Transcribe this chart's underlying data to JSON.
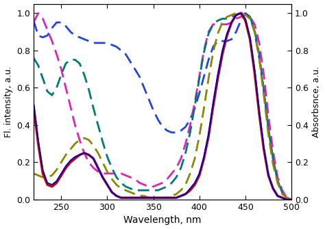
{
  "title": "",
  "xlabel": "Wavelength, nm",
  "ylabel_left": "Fl. intensity, a.u.",
  "ylabel_right": "Absorbsnce, a.u.",
  "xlim": [
    220,
    500
  ],
  "ylim": [
    0.0,
    1.05
  ],
  "background_color": "#ffffff",
  "xticks": [
    250,
    300,
    350,
    400,
    450,
    500
  ],
  "yticks": [
    0.0,
    0.2,
    0.4,
    0.6,
    0.8,
    1.0
  ],
  "curves": [
    {
      "name": "red_solid",
      "color": "#cc0000",
      "linewidth": 2.5,
      "linestyle": "solid",
      "x": [
        220,
        225,
        230,
        235,
        240,
        245,
        250,
        255,
        260,
        265,
        270,
        275,
        280,
        285,
        290,
        295,
        300,
        305,
        310,
        315,
        320,
        325,
        330,
        335,
        340,
        345,
        350,
        355,
        360,
        365,
        370,
        375,
        380,
        385,
        390,
        395,
        400,
        405,
        410,
        415,
        420,
        425,
        430,
        435,
        440,
        445,
        450,
        455,
        460,
        465,
        470,
        475,
        480,
        485,
        490,
        495,
        500
      ],
      "y": [
        0.5,
        0.3,
        0.14,
        0.08,
        0.07,
        0.09,
        0.13,
        0.17,
        0.2,
        0.22,
        0.24,
        0.25,
        0.24,
        0.22,
        0.17,
        0.12,
        0.08,
        0.04,
        0.02,
        0.01,
        0.01,
        0.01,
        0.01,
        0.01,
        0.01,
        0.01,
        0.01,
        0.01,
        0.01,
        0.01,
        0.01,
        0.01,
        0.02,
        0.03,
        0.05,
        0.08,
        0.13,
        0.22,
        0.34,
        0.5,
        0.65,
        0.78,
        0.88,
        0.95,
        0.99,
        1.0,
        0.96,
        0.86,
        0.68,
        0.46,
        0.27,
        0.13,
        0.06,
        0.02,
        0.01,
        0.0,
        0.0
      ]
    },
    {
      "name": "blue_solid",
      "color": "#0000bb",
      "linewidth": 1.4,
      "linestyle": "solid",
      "x": [
        220,
        225,
        230,
        235,
        240,
        245,
        250,
        255,
        260,
        265,
        270,
        275,
        280,
        285,
        290,
        295,
        300,
        305,
        310,
        315,
        320,
        325,
        330,
        335,
        340,
        345,
        350,
        355,
        360,
        365,
        370,
        375,
        380,
        385,
        390,
        395,
        400,
        405,
        410,
        415,
        420,
        425,
        430,
        435,
        440,
        445,
        450,
        455,
        460,
        465,
        470,
        475,
        480,
        485,
        490,
        495,
        500
      ],
      "y": [
        0.52,
        0.32,
        0.16,
        0.09,
        0.08,
        0.1,
        0.14,
        0.18,
        0.21,
        0.23,
        0.24,
        0.25,
        0.24,
        0.22,
        0.17,
        0.12,
        0.08,
        0.04,
        0.02,
        0.01,
        0.01,
        0.01,
        0.01,
        0.01,
        0.01,
        0.01,
        0.01,
        0.01,
        0.01,
        0.01,
        0.01,
        0.01,
        0.02,
        0.03,
        0.06,
        0.09,
        0.14,
        0.23,
        0.35,
        0.52,
        0.67,
        0.8,
        0.89,
        0.95,
        0.99,
        1.0,
        0.97,
        0.87,
        0.7,
        0.48,
        0.28,
        0.13,
        0.06,
        0.02,
        0.01,
        0.0,
        0.0
      ]
    },
    {
      "name": "blue_dashed",
      "color": "#2244dd",
      "linewidth": 2.0,
      "linestyle": "dashed",
      "x": [
        220,
        225,
        230,
        235,
        240,
        245,
        250,
        255,
        260,
        265,
        270,
        275,
        280,
        285,
        290,
        295,
        300,
        305,
        310,
        315,
        320,
        325,
        330,
        335,
        340,
        345,
        350,
        355,
        360,
        365,
        370,
        375,
        380,
        385,
        390,
        395,
        400,
        405,
        410,
        415,
        420,
        425,
        430,
        435,
        440,
        445,
        450,
        455,
        460,
        465,
        470,
        475,
        480,
        485,
        490,
        495,
        500
      ],
      "y": [
        0.96,
        0.88,
        0.87,
        0.88,
        0.92,
        0.95,
        0.95,
        0.93,
        0.9,
        0.88,
        0.87,
        0.86,
        0.85,
        0.84,
        0.84,
        0.84,
        0.84,
        0.83,
        0.82,
        0.8,
        0.78,
        0.74,
        0.7,
        0.66,
        0.6,
        0.54,
        0.48,
        0.43,
        0.39,
        0.37,
        0.36,
        0.36,
        0.37,
        0.39,
        0.43,
        0.49,
        0.57,
        0.66,
        0.75,
        0.82,
        0.85,
        0.85,
        0.85,
        0.86,
        0.9,
        0.96,
        1.0,
        0.98,
        0.9,
        0.76,
        0.58,
        0.38,
        0.22,
        0.1,
        0.04,
        0.01,
        0.0
      ]
    },
    {
      "name": "magenta_dashed",
      "color": "#dd22bb",
      "linewidth": 2.0,
      "linestyle": "dashed",
      "x": [
        220,
        225,
        230,
        235,
        240,
        245,
        250,
        255,
        260,
        265,
        270,
        275,
        280,
        285,
        290,
        295,
        300,
        305,
        310,
        315,
        320,
        325,
        330,
        335,
        340,
        345,
        350,
        355,
        360,
        365,
        370,
        375,
        380,
        385,
        390,
        395,
        400,
        405,
        410,
        415,
        420,
        425,
        430,
        435,
        440,
        445,
        450,
        455,
        460,
        465,
        470,
        475,
        480,
        485,
        490,
        495,
        500
      ],
      "y": [
        0.95,
        1.0,
        0.97,
        0.91,
        0.85,
        0.78,
        0.7,
        0.6,
        0.5,
        0.4,
        0.32,
        0.25,
        0.2,
        0.17,
        0.15,
        0.14,
        0.14,
        0.14,
        0.14,
        0.14,
        0.13,
        0.12,
        0.11,
        0.09,
        0.08,
        0.07,
        0.07,
        0.08,
        0.09,
        0.11,
        0.14,
        0.17,
        0.22,
        0.3,
        0.4,
        0.52,
        0.66,
        0.8,
        0.9,
        0.94,
        0.94,
        0.94,
        0.94,
        0.95,
        0.97,
        0.98,
        0.99,
        0.98,
        0.94,
        0.84,
        0.67,
        0.45,
        0.26,
        0.12,
        0.05,
        0.01,
        0.0
      ]
    },
    {
      "name": "teal_dashed",
      "color": "#007878",
      "linewidth": 2.0,
      "linestyle": "dashed",
      "x": [
        220,
        225,
        230,
        235,
        240,
        245,
        250,
        255,
        260,
        265,
        270,
        275,
        280,
        285,
        290,
        295,
        300,
        305,
        310,
        315,
        320,
        325,
        330,
        335,
        340,
        345,
        350,
        355,
        360,
        365,
        370,
        375,
        380,
        385,
        390,
        395,
        400,
        405,
        410,
        415,
        420,
        425,
        430,
        435,
        440,
        445,
        450,
        455,
        460,
        465,
        470,
        475,
        480,
        485,
        490,
        495,
        500
      ],
      "y": [
        0.76,
        0.72,
        0.65,
        0.58,
        0.56,
        0.6,
        0.67,
        0.73,
        0.75,
        0.75,
        0.73,
        0.67,
        0.59,
        0.49,
        0.4,
        0.31,
        0.23,
        0.17,
        0.12,
        0.09,
        0.07,
        0.06,
        0.05,
        0.05,
        0.05,
        0.05,
        0.05,
        0.05,
        0.06,
        0.07,
        0.09,
        0.12,
        0.17,
        0.25,
        0.36,
        0.5,
        0.65,
        0.79,
        0.89,
        0.94,
        0.96,
        0.97,
        0.97,
        0.98,
        0.99,
        1.0,
        1.0,
        0.98,
        0.91,
        0.78,
        0.59,
        0.38,
        0.22,
        0.1,
        0.04,
        0.01,
        0.0
      ]
    },
    {
      "name": "olive_dashed",
      "color": "#888800",
      "linewidth": 2.0,
      "linestyle": "dashed",
      "x": [
        220,
        225,
        230,
        235,
        240,
        245,
        250,
        255,
        260,
        265,
        270,
        275,
        280,
        285,
        290,
        295,
        300,
        305,
        310,
        315,
        320,
        325,
        330,
        335,
        340,
        345,
        350,
        355,
        360,
        365,
        370,
        375,
        380,
        385,
        390,
        395,
        400,
        405,
        410,
        415,
        420,
        425,
        430,
        435,
        440,
        445,
        450,
        455,
        460,
        465,
        470,
        475,
        480,
        485,
        490,
        495,
        500
      ],
      "y": [
        0.14,
        0.13,
        0.12,
        0.12,
        0.13,
        0.16,
        0.2,
        0.24,
        0.27,
        0.3,
        0.32,
        0.33,
        0.32,
        0.29,
        0.25,
        0.2,
        0.15,
        0.11,
        0.08,
        0.06,
        0.05,
        0.04,
        0.03,
        0.02,
        0.02,
        0.01,
        0.01,
        0.01,
        0.01,
        0.01,
        0.02,
        0.03,
        0.05,
        0.08,
        0.14,
        0.22,
        0.34,
        0.49,
        0.65,
        0.79,
        0.89,
        0.95,
        0.98,
        0.99,
        1.0,
        1.0,
        0.99,
        0.97,
        0.9,
        0.76,
        0.56,
        0.35,
        0.19,
        0.09,
        0.03,
        0.01,
        0.0
      ]
    }
  ]
}
